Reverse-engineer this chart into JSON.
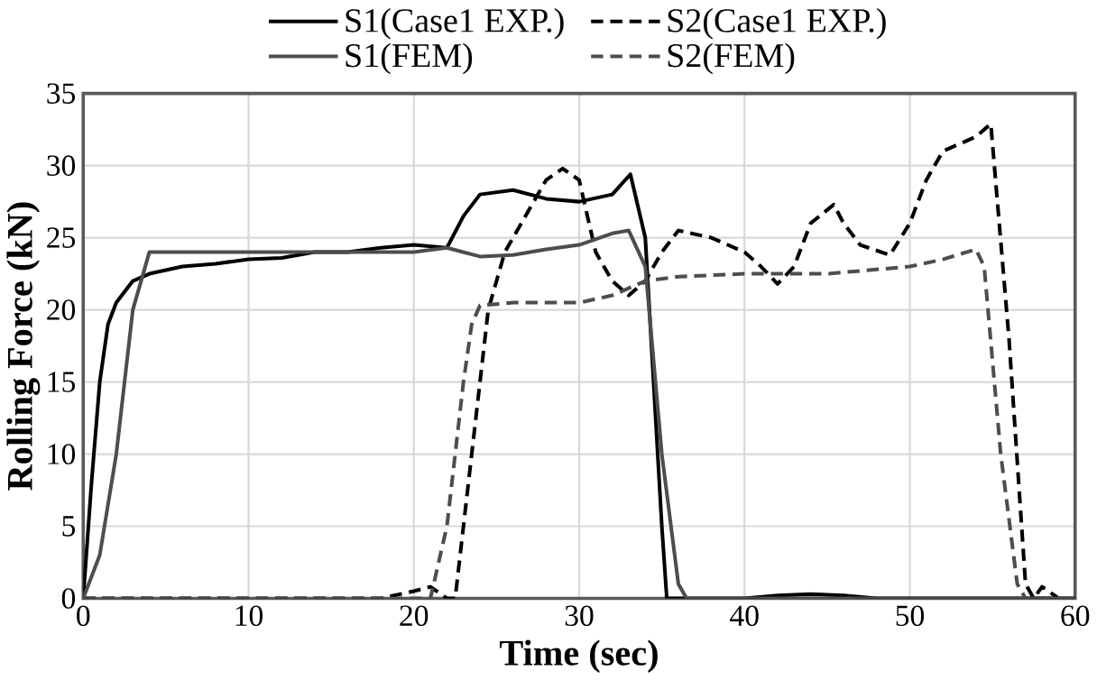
{
  "chart_data": {
    "type": "line",
    "xlabel": "Time (sec)",
    "ylabel": "Rolling Force (kN)",
    "xlim": [
      0,
      60
    ],
    "ylim": [
      0,
      35
    ],
    "xticks": [
      0,
      10,
      20,
      30,
      40,
      50,
      60
    ],
    "yticks": [
      0,
      5,
      10,
      15,
      20,
      25,
      30,
      35
    ],
    "grid": true,
    "legend": "top",
    "marker": "none",
    "series": [
      {
        "name": "S1(Case1 EXP.)",
        "color": "#000000",
        "line_style": "solid",
        "x": [
          0,
          0.5,
          1,
          1.5,
          2,
          3,
          4,
          6,
          8,
          10,
          12,
          14,
          16,
          18,
          20,
          22,
          23,
          24,
          26,
          28,
          30,
          32,
          33.1,
          34,
          35,
          35.3,
          40,
          42,
          44,
          46,
          48,
          60
        ],
        "values": [
          0,
          8,
          15,
          19,
          20.5,
          22,
          22.5,
          23,
          23.2,
          23.5,
          23.6,
          24,
          24,
          24.3,
          24.5,
          24.3,
          26.5,
          28,
          28.3,
          27.7,
          27.5,
          28,
          29.4,
          25,
          5,
          0,
          0,
          0.2,
          0.3,
          0.2,
          0,
          0
        ]
      },
      {
        "name": "S2(Case1 EXP.)",
        "color": "#000000",
        "line_style": "dashed",
        "x": [
          0,
          18,
          20,
          21,
          22,
          22.5,
          23.5,
          24.5,
          25.5,
          27,
          28,
          29,
          30,
          31,
          32,
          33,
          34,
          35,
          36,
          38,
          40,
          41,
          42,
          43,
          44,
          45.4,
          46,
          47,
          48.8,
          50,
          51,
          52,
          53,
          54,
          54.9,
          56,
          57,
          57.5,
          58,
          59
        ],
        "values": [
          0,
          0,
          0.5,
          0.8,
          0,
          0,
          10,
          20,
          24,
          27,
          29,
          29.8,
          29,
          24,
          22,
          21,
          22,
          24,
          25.5,
          25,
          24,
          23,
          21.8,
          23,
          26,
          27.3,
          26,
          24.5,
          23.8,
          26,
          29,
          31,
          31.5,
          32,
          32.9,
          18,
          1,
          0,
          0.8,
          0
        ]
      },
      {
        "name": "S1(FEM)",
        "color": "#4d4d4d",
        "line_style": "solid",
        "x": [
          0,
          1,
          2,
          3,
          4,
          10,
          20,
          22,
          24,
          26,
          28,
          30,
          32,
          33,
          34,
          35,
          36,
          36.5,
          60
        ],
        "values": [
          0,
          3,
          10,
          20,
          24,
          24,
          24,
          24.3,
          23.7,
          23.8,
          24.2,
          24.5,
          25.3,
          25.5,
          23,
          10,
          1,
          0,
          0
        ]
      },
      {
        "name": "S2(FEM)",
        "color": "#4d4d4d",
        "line_style": "dashed",
        "x": [
          0,
          21,
          22,
          23,
          23.5,
          24,
          26,
          30,
          32,
          34,
          36,
          40,
          45,
          50,
          52,
          54,
          54.5,
          55.5,
          56.5,
          57,
          60
        ],
        "values": [
          0,
          0,
          5,
          15,
          19,
          20.3,
          20.5,
          20.5,
          21,
          22,
          22.3,
          22.5,
          22.5,
          23,
          23.5,
          24.2,
          23,
          10,
          1,
          0,
          0
        ]
      }
    ]
  }
}
